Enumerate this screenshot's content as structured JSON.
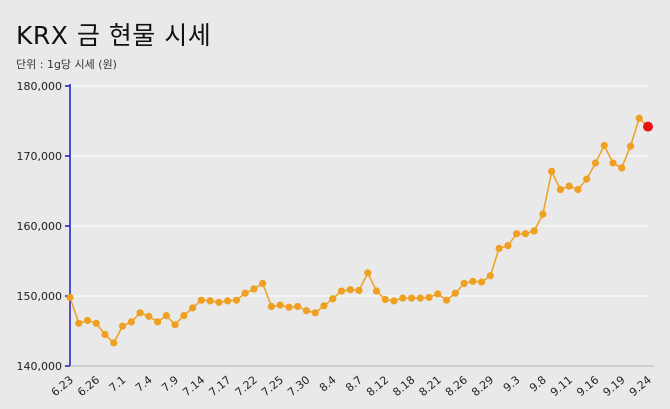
{
  "chart_data": {
    "type": "line",
    "title": "KRX 금 현물 시세",
    "subtitle": "단위 : 1g당 시세 (원)",
    "ylim": [
      140000,
      180000
    ],
    "yticks": [
      "140,000",
      "150,000",
      "160,000",
      "170,000",
      "180,000"
    ],
    "ytick_values": [
      140000,
      150000,
      160000,
      170000,
      180000
    ],
    "xtick_labels": [
      "6.23",
      "6.26",
      "7.1",
      "7.4",
      "7.9",
      "7.14",
      "7.17",
      "7.22",
      "7.25",
      "7.30",
      "8.4",
      "8.7",
      "8.12",
      "8.18",
      "8.21",
      "8.26",
      "8.29",
      "9.3",
      "9.8",
      "9.11",
      "9.16",
      "9.19",
      "9.24"
    ],
    "grid": true,
    "colors": {
      "line": "#f0a020",
      "point": "#f0a020",
      "highlight": "#ee1111",
      "axis": "#1a1acc"
    },
    "series": [
      {
        "values": [
          149800,
          146100,
          146500,
          146100,
          144500,
          143300,
          145700,
          146300,
          147600,
          147100,
          146300,
          147200,
          145900,
          147200,
          148300,
          149400,
          149300,
          149100,
          149300,
          149400,
          150400,
          151000,
          151800,
          148500,
          148700,
          148400,
          148500,
          147900,
          147600,
          148600,
          149600,
          150700,
          150900,
          150800,
          153300,
          150700,
          149500,
          149300,
          149700,
          149700,
          149700,
          149800,
          150300,
          149400,
          150400,
          151800,
          152100,
          152000,
          152900,
          156800,
          157200,
          158900,
          158900,
          159300,
          161700,
          167800,
          165200,
          165700,
          165200,
          166700,
          169000,
          171500,
          169000,
          168300,
          171400,
          175400,
          174200
        ]
      }
    ]
  }
}
